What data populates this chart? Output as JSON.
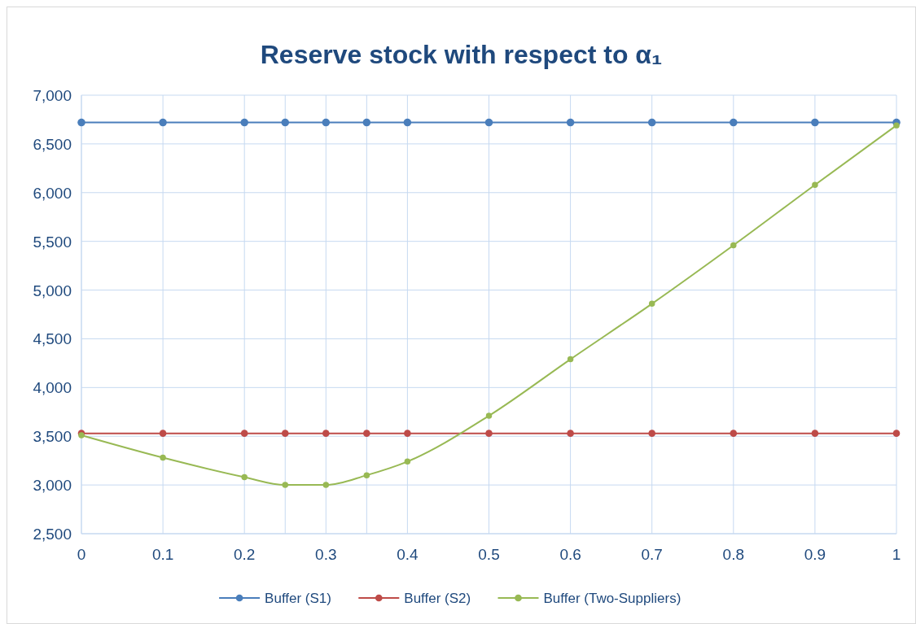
{
  "chart_data": {
    "type": "line",
    "title": "Reserve stock with respect to α₁",
    "x": [
      0,
      0.1,
      0.2,
      0.25,
      0.3,
      0.35,
      0.4,
      0.5,
      0.6,
      0.7,
      0.8,
      0.9,
      1
    ],
    "series": [
      {
        "name": "Buffer (S1)",
        "color": "#4a7ebb",
        "values": [
          6720,
          6720,
          6720,
          6720,
          6720,
          6720,
          6720,
          6720,
          6720,
          6720,
          6720,
          6720,
          6720
        ]
      },
      {
        "name": "Buffer (S2)",
        "color": "#be4b48",
        "values": [
          3530,
          3530,
          3530,
          3530,
          3530,
          3530,
          3530,
          3530,
          3530,
          3530,
          3530,
          3530,
          3530
        ]
      },
      {
        "name": "Buffer (Two-Suppliers)",
        "color": "#98b954",
        "values": [
          3510,
          3280,
          3080,
          3000,
          3000,
          3100,
          3240,
          3710,
          4290,
          4860,
          5460,
          6080,
          6690
        ]
      }
    ],
    "xlim": [
      0,
      1
    ],
    "xticks": [
      0,
      0.1,
      0.2,
      {
        "value": 0.25,
        "label": null
      },
      0.3,
      {
        "value": 0.35,
        "label": null
      },
      0.4,
      0.5,
      0.6,
      0.7,
      0.8,
      0.9,
      1
    ],
    "ylim": [
      2500,
      7000
    ],
    "yticks": [
      {
        "value": 2500,
        "label": "2,500"
      },
      {
        "value": 3000,
        "label": "3,000"
      },
      {
        "value": 3500,
        "label": "3,500"
      },
      {
        "value": 4000,
        "label": "4,000"
      },
      {
        "value": 4500,
        "label": "4,500"
      },
      {
        "value": 5000,
        "label": "5,000"
      },
      {
        "value": 5500,
        "label": "5,500"
      },
      {
        "value": 6000,
        "label": "6,000"
      },
      {
        "value": 6500,
        "label": "6,500"
      },
      {
        "value": 7000,
        "label": "7,000"
      }
    ],
    "grid": true,
    "legend": "bottom",
    "marker": "circle",
    "line_style": "solid"
  }
}
